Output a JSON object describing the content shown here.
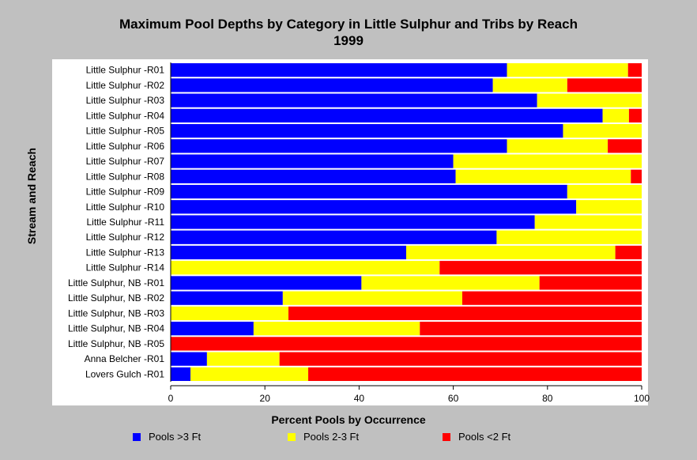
{
  "chart_data": {
    "type": "bar",
    "orientation": "horizontal",
    "stacked": true,
    "title": "Maximum Pool Depths by Category in Little Sulphur and Tribs by Reach",
    "subtitle": "1999",
    "xlabel": "Percent Pools by Occurrence",
    "ylabel": "Stream and Reach",
    "xlim": [
      0,
      100
    ],
    "xticks": [
      "0",
      "20",
      "40",
      "60",
      "80",
      "100"
    ],
    "legend_position": "bottom",
    "categories": [
      "Little Sulphur -R01",
      "Little Sulphur -R02",
      "Little Sulphur -R03",
      "Little Sulphur -R04",
      "Little Sulphur -R05",
      "Little Sulphur -R06",
      "Little Sulphur -R07",
      "Little Sulphur -R08",
      "Little Sulphur -R09",
      "Little Sulphur -R10",
      "Little Sulphur -R11",
      "Little Sulphur -R12",
      "Little Sulphur -R13",
      "Little Sulphur -R14",
      "Little Sulphur, NB -R01",
      "Little Sulphur, NB -R02",
      "Little Sulphur, NB -R03",
      "Little Sulphur, NB -R04",
      "Little Sulphur, NB -R05",
      "Anna Belcher -R01",
      "Lovers Gulch -R01"
    ],
    "series": [
      {
        "name": "Pools >3 Ft",
        "color": "#0000ff",
        "values": [
          71.4,
          68.4,
          77.8,
          91.7,
          83.3,
          71.4,
          60.0,
          60.5,
          84.2,
          86.1,
          77.3,
          69.2,
          50.0,
          0,
          40.5,
          23.8,
          0,
          17.6,
          0,
          7.7,
          4.2
        ]
      },
      {
        "name": "Pools 2-3 Ft",
        "color": "#ffff00",
        "values": [
          25.7,
          15.8,
          22.2,
          5.6,
          16.7,
          21.4,
          40.0,
          37.2,
          15.8,
          13.9,
          22.7,
          30.8,
          44.4,
          57.1,
          37.8,
          38.1,
          25.0,
          35.3,
          0,
          15.4,
          25.0
        ]
      },
      {
        "name": "Pools <2 Ft",
        "color": "#ff0000",
        "values": [
          2.9,
          15.8,
          0,
          2.7,
          0,
          7.2,
          0,
          2.3,
          0,
          0,
          0,
          0,
          5.6,
          42.9,
          21.7,
          38.1,
          75.0,
          47.1,
          100,
          76.9,
          70.8
        ]
      }
    ]
  },
  "colors": {
    "background": "#c0c0c0",
    "plot_background": "#ffffff"
  }
}
